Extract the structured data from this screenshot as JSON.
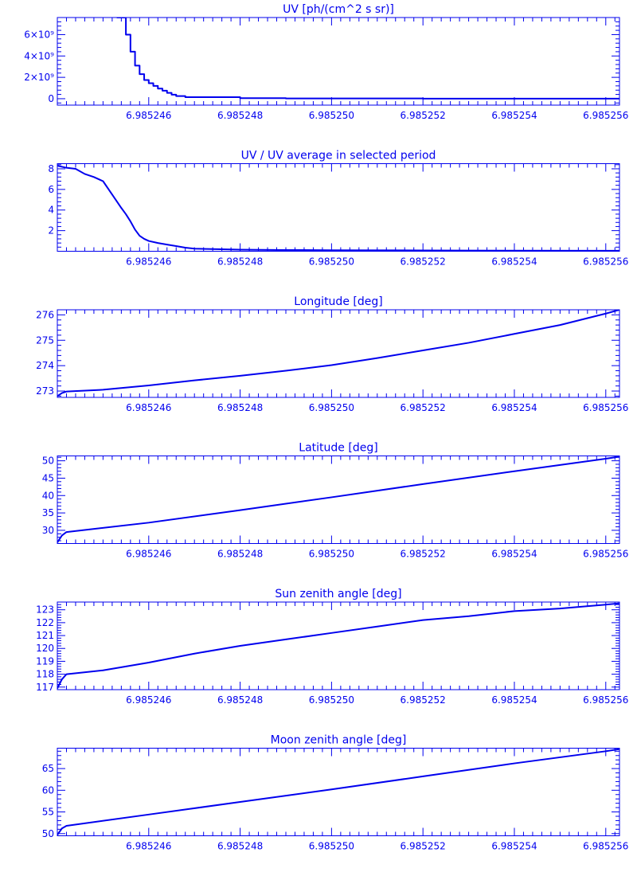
{
  "colors": {
    "ink": "#0000ee",
    "background": "#ffffff"
  },
  "chart_data": [
    {
      "type": "line",
      "title": "UV [ph/(cm^2 s sr)]",
      "xlim": [
        6.985244,
        6.9852563
      ],
      "ylim": [
        -600000000,
        7600000000
      ],
      "x_ticks": [
        6.985246,
        6.985248,
        6.98525,
        6.985252,
        6.985254,
        6.985256
      ],
      "x_tick_labels": [
        "6.985246",
        "6.985248",
        "6.985250",
        "6.985252",
        "6.985254",
        "6.985256"
      ],
      "y_ticks": [
        0,
        2000000000,
        4000000000,
        6000000000
      ],
      "y_tick_labels": [
        "0",
        "2×10⁹",
        "4×10⁹",
        "6×10⁹"
      ],
      "step": true,
      "series": [
        {
          "x": [
            6.9852453,
            6.9852455,
            6.9852456,
            6.9852457,
            6.9852458,
            6.9852459,
            6.985246,
            6.9852461,
            6.9852462,
            6.9852463,
            6.9852464,
            6.9852465,
            6.9852466,
            6.9852468,
            6.985248,
            6.985249,
            6.985252,
            6.985256,
            6.9852563
          ],
          "y": [
            7600000000,
            6000000000,
            4400000000,
            3100000000,
            2300000000,
            1750000000,
            1450000000,
            1200000000,
            950000000,
            750000000,
            550000000,
            380000000,
            250000000,
            150000000,
            50000000,
            20000000,
            10000000,
            5000000,
            5000000
          ]
        }
      ]
    },
    {
      "type": "line",
      "title": "UV / UV average in selected period",
      "xlim": [
        6.985244,
        6.9852563
      ],
      "ylim": [
        0,
        8.5
      ],
      "x_ticks": [
        6.985246,
        6.985248,
        6.98525,
        6.985252,
        6.985254,
        6.985256
      ],
      "x_tick_labels": [
        "6.985246",
        "6.985248",
        "6.985250",
        "6.985252",
        "6.985254",
        "6.985256"
      ],
      "y_ticks": [
        2,
        4,
        6,
        8
      ],
      "y_tick_labels": [
        "2",
        "4",
        "6",
        "8"
      ],
      "series": [
        {
          "x": [
            6.985244,
            6.9852442,
            6.9852444,
            6.9852446,
            6.9852448,
            6.985245,
            6.9852452,
            6.9852454,
            6.9852455,
            6.9852456,
            6.9852457,
            6.9852458,
            6.9852459,
            6.985246,
            6.9852462,
            6.9852464,
            6.9852466,
            6.9852468,
            6.985247,
            6.9852475,
            6.985248,
            6.985249,
            6.98525,
            6.985252,
            6.985254,
            6.985256,
            6.9852563
          ],
          "y": [
            8.3,
            8.1,
            8.0,
            7.5,
            7.2,
            6.8,
            5.5,
            4.2,
            3.6,
            2.9,
            2.1,
            1.5,
            1.2,
            1.0,
            0.8,
            0.65,
            0.5,
            0.35,
            0.25,
            0.2,
            0.15,
            0.12,
            0.1,
            0.08,
            0.06,
            0.05,
            0.05
          ]
        }
      ]
    },
    {
      "type": "line",
      "title": "Longitude [deg]",
      "xlim": [
        6.985244,
        6.9852563
      ],
      "ylim": [
        272.75,
        276.2
      ],
      "x_ticks": [
        6.985246,
        6.985248,
        6.98525,
        6.985252,
        6.985254,
        6.985256
      ],
      "x_tick_labels": [
        "6.985246",
        "6.985248",
        "6.985250",
        "6.985252",
        "6.985254",
        "6.985256"
      ],
      "y_ticks": [
        273,
        274,
        275,
        276
      ],
      "y_tick_labels": [
        "273",
        "274",
        "275",
        "276"
      ],
      "series": [
        {
          "x": [
            6.985244,
            6.9852441,
            6.9852442,
            6.985245,
            6.985246,
            6.985247,
            6.985248,
            6.985249,
            6.98525,
            6.985251,
            6.985252,
            6.985253,
            6.985254,
            6.985255,
            6.985256,
            6.9852563
          ],
          "y": [
            272.8,
            272.92,
            272.98,
            273.05,
            273.22,
            273.42,
            273.6,
            273.8,
            274.02,
            274.3,
            274.6,
            274.9,
            275.25,
            275.6,
            276.05,
            276.2
          ]
        }
      ]
    },
    {
      "type": "line",
      "title": "Latitude [deg]",
      "xlim": [
        6.985244,
        6.9852563
      ],
      "ylim": [
        26.2,
        51.4
      ],
      "x_ticks": [
        6.985246,
        6.985248,
        6.98525,
        6.985252,
        6.985254,
        6.985256
      ],
      "x_tick_labels": [
        "6.985246",
        "6.985248",
        "6.985250",
        "6.985252",
        "6.985254",
        "6.985256"
      ],
      "y_ticks": [
        30,
        35,
        40,
        45,
        50
      ],
      "y_tick_labels": [
        "30",
        "35",
        "40",
        "45",
        "50"
      ],
      "series": [
        {
          "x": [
            6.985244,
            6.9852441,
            6.9852442,
            6.985246,
            6.985248,
            6.98525,
            6.985252,
            6.985254,
            6.985256,
            6.9852563
          ],
          "y": [
            26.5,
            28.5,
            29.5,
            32.2,
            35.8,
            39.5,
            43.3,
            47.0,
            50.6,
            51.2
          ]
        }
      ]
    },
    {
      "type": "line",
      "title": "Sun zenith angle [deg]",
      "xlim": [
        6.985244,
        6.9852563
      ],
      "ylim": [
        116.8,
        123.6
      ],
      "x_ticks": [
        6.985246,
        6.985248,
        6.98525,
        6.985252,
        6.985254,
        6.985256
      ],
      "x_tick_labels": [
        "6.985246",
        "6.985248",
        "6.985250",
        "6.985252",
        "6.985254",
        "6.985256"
      ],
      "y_ticks": [
        117,
        118,
        119,
        120,
        121,
        122,
        123
      ],
      "y_tick_labels": [
        "117",
        "118",
        "119",
        "120",
        "121",
        "122",
        "123"
      ],
      "series": [
        {
          "x": [
            6.985244,
            6.9852441,
            6.9852442,
            6.985245,
            6.985246,
            6.985247,
            6.985248,
            6.985249,
            6.98525,
            6.985251,
            6.985252,
            6.985253,
            6.985254,
            6.985255,
            6.985256,
            6.9852563
          ],
          "y": [
            116.9,
            117.6,
            118.0,
            118.3,
            118.9,
            119.6,
            120.2,
            120.7,
            121.2,
            121.7,
            122.2,
            122.5,
            122.9,
            123.1,
            123.4,
            123.5
          ]
        }
      ]
    },
    {
      "type": "line",
      "title": "Moon zenith angle [deg]",
      "xlim": [
        6.985244,
        6.9852563
      ],
      "ylim": [
        49.5,
        69.7
      ],
      "x_ticks": [
        6.985246,
        6.985248,
        6.98525,
        6.985252,
        6.985254,
        6.985256
      ],
      "x_tick_labels": [
        "6.985246",
        "6.985248",
        "6.985250",
        "6.985252",
        "6.985254",
        "6.985256"
      ],
      "y_ticks": [
        50,
        55,
        60,
        65
      ],
      "y_tick_labels": [
        "50",
        "55",
        "60",
        "65"
      ],
      "series": [
        {
          "x": [
            6.985244,
            6.9852441,
            6.9852442,
            6.985246,
            6.985248,
            6.98525,
            6.985252,
            6.985254,
            6.985256,
            6.9852563
          ],
          "y": [
            49.7,
            51.2,
            51.8,
            54.4,
            57.3,
            60.2,
            63.2,
            66.2,
            69.0,
            69.5
          ]
        }
      ]
    }
  ]
}
